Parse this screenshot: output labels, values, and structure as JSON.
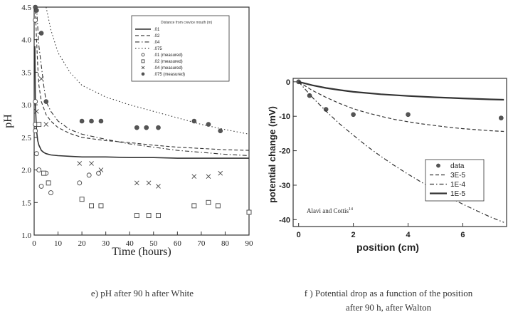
{
  "chart_data": [
    {
      "type": "line",
      "xlabel": "Time (hours)",
      "ylabel": "pH",
      "xlim": [
        0,
        90
      ],
      "ylim": [
        1.0,
        4.5
      ],
      "xticks": [
        "0",
        "10",
        "20",
        "30",
        "40",
        "50",
        "60",
        "70",
        "80",
        "90"
      ],
      "yticks": [
        "1.0",
        "1.5",
        "2.0",
        "2.5",
        "3.0",
        "3.5",
        "4.0",
        "4.5"
      ],
      "legend_title": "Distance from crevice mouth (m)",
      "legend_position": "top-right",
      "series": [
        {
          "name": ".01",
          "style": "solid",
          "x": [
            0.3,
            0.5,
            1,
            1.5,
            2,
            3,
            4,
            5,
            7,
            10,
            15,
            20,
            30,
            40,
            50,
            60,
            70,
            80,
            90
          ],
          "y": [
            3.9,
            3.0,
            2.6,
            2.45,
            2.38,
            2.3,
            2.27,
            2.25,
            2.23,
            2.22,
            2.21,
            2.2,
            2.2,
            2.19,
            2.19,
            2.18,
            2.18,
            2.18,
            2.18
          ]
        },
        {
          "name": ".02",
          "style": "dash",
          "x": [
            0.5,
            1,
            1.5,
            2,
            3,
            4,
            5,
            7,
            10,
            15,
            20,
            30,
            40,
            50,
            60,
            70,
            80,
            90
          ],
          "y": [
            4.45,
            4.0,
            3.6,
            3.3,
            3.05,
            2.95,
            2.85,
            2.75,
            2.65,
            2.56,
            2.5,
            2.45,
            2.42,
            2.38,
            2.35,
            2.33,
            2.31,
            2.3
          ]
        },
        {
          "name": ".04",
          "style": "dash-dot",
          "x": [
            1,
            1.5,
            2,
            3,
            4,
            5,
            7,
            10,
            15,
            20,
            30,
            40,
            50,
            60,
            70,
            80,
            90
          ],
          "y": [
            4.5,
            4.2,
            3.9,
            3.6,
            3.3,
            3.05,
            2.9,
            2.75,
            2.62,
            2.55,
            2.47,
            2.4,
            2.35,
            2.3,
            2.27,
            2.24,
            2.22
          ]
        },
        {
          "name": ".075",
          "style": "dot",
          "x": [
            5,
            7,
            10,
            15,
            20,
            30,
            40,
            50,
            60,
            70,
            80,
            90
          ],
          "y": [
            4.5,
            4.15,
            3.8,
            3.5,
            3.3,
            3.12,
            3.0,
            2.9,
            2.8,
            2.7,
            2.62,
            2.55
          ]
        },
        {
          "name": ".01 (measured)",
          "marker": "circle-open",
          "x": [
            0.5,
            1,
            2,
            3,
            5,
            7,
            19,
            23,
            27
          ],
          "y": [
            2.6,
            2.25,
            2.0,
            1.75,
            1.95,
            1.65,
            1.8,
            1.92,
            1.95
          ],
          "extra_y_at_x0": [
            4.3,
            3.05,
            2.7
          ]
        },
        {
          "name": ".02 (measured)",
          "marker": "square-open",
          "x": [
            2,
            4,
            6,
            20,
            24,
            28,
            43,
            48,
            52,
            67,
            73,
            77,
            90
          ],
          "y": [
            2.7,
            1.95,
            1.8,
            1.55,
            1.45,
            1.45,
            1.3,
            1.3,
            1.3,
            1.45,
            1.5,
            1.45,
            1.35
          ]
        },
        {
          "name": ".04 (measured)",
          "marker": "x",
          "x": [
            1,
            3,
            5,
            19,
            24,
            28,
            43,
            48,
            52,
            67,
            73,
            78
          ],
          "y": [
            2.9,
            3.4,
            2.7,
            2.1,
            2.1,
            2.0,
            1.8,
            1.8,
            1.75,
            1.9,
            1.9,
            1.95
          ]
        },
        {
          "name": ".075 (measured)",
          "marker": "circle-filled",
          "x": [
            0.5,
            1,
            3,
            5,
            20,
            24,
            28,
            43,
            47,
            52,
            67,
            73,
            78
          ],
          "y": [
            4.5,
            4.45,
            4.1,
            3.05,
            2.75,
            2.75,
            2.75,
            2.65,
            2.65,
            2.65,
            2.75,
            2.7,
            2.6
          ]
        }
      ]
    },
    {
      "type": "line",
      "xlabel": "position (cm)",
      "ylabel": "potential change (mV)",
      "xlim": [
        -0.2,
        7.6
      ],
      "ylim": [
        -42,
        1
      ],
      "xticks": [
        "0",
        "2",
        "4",
        "6"
      ],
      "yticks": [
        "0",
        "-10",
        "-20",
        "-30",
        "-40"
      ],
      "annotation": "Alavi and Cottis",
      "annotation_sup": "14",
      "legend_position": "right",
      "series": [
        {
          "name": "data",
          "marker": "circle-filled",
          "x": [
            0,
            0.4,
            1,
            2,
            4,
            7.4
          ],
          "y": [
            0,
            -4,
            -8,
            -9.5,
            -9.5,
            -10.5
          ]
        },
        {
          "name": "3E-5",
          "style": "dash",
          "x": [
            0,
            0.5,
            1,
            1.5,
            2,
            2.5,
            3,
            3.5,
            4,
            4.5,
            5,
            5.5,
            6,
            6.5,
            7,
            7.5
          ],
          "y": [
            0,
            -2.5,
            -4.5,
            -6.3,
            -7.8,
            -9,
            -10,
            -10.9,
            -11.6,
            -12.2,
            -12.7,
            -13.2,
            -13.6,
            -13.9,
            -14.2,
            -14.4
          ]
        },
        {
          "name": "1E-4",
          "style": "dash-dot",
          "x": [
            0,
            0.5,
            1,
            1.5,
            2,
            2.5,
            3,
            3.5,
            4,
            4.5,
            5,
            5.5,
            6,
            6.5,
            7,
            7.5
          ],
          "y": [
            0,
            -4.5,
            -8.5,
            -12.2,
            -15.5,
            -18.7,
            -21.6,
            -24.3,
            -26.8,
            -29.2,
            -31.4,
            -33.5,
            -35.5,
            -37.4,
            -39.2,
            -40.8
          ]
        },
        {
          "name": "1E-5",
          "style": "solid",
          "x": [
            0,
            0.5,
            1,
            1.5,
            2,
            3,
            4,
            5,
            6,
            7,
            7.5
          ],
          "y": [
            0,
            -1,
            -1.8,
            -2.4,
            -2.9,
            -3.6,
            -4.1,
            -4.5,
            -4.8,
            -5.1,
            -5.2
          ]
        }
      ]
    }
  ],
  "captions": {
    "left": "e) pH after 90 h   after White",
    "right_line1": "f ) Potential drop as a function of the position",
    "right_line2": "after 90 h, after Walton"
  }
}
